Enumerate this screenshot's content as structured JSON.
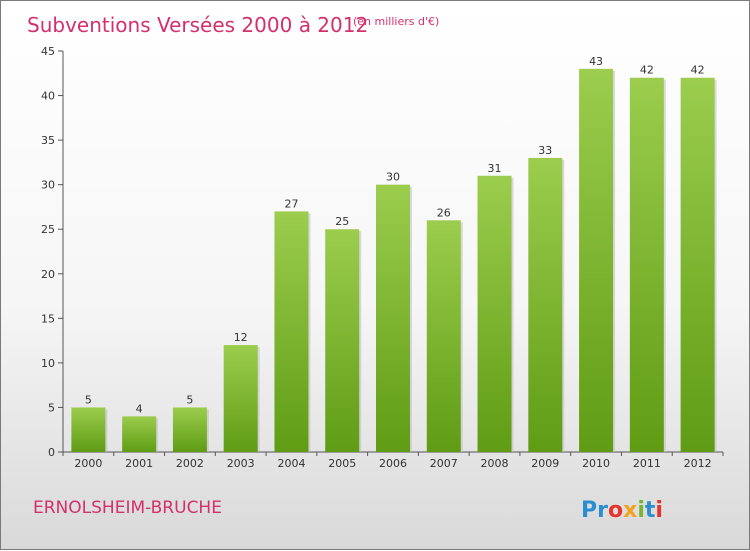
{
  "chart_data": {
    "type": "bar",
    "title": "Subventions Versées 2000 à 2012",
    "subtitle": "(en milliers d'€)",
    "categories": [
      "2000",
      "2001",
      "2002",
      "2003",
      "2004",
      "2005",
      "2006",
      "2007",
      "2008",
      "2009",
      "2010",
      "2011",
      "2012"
    ],
    "values": [
      5,
      4,
      5,
      12,
      27,
      25,
      30,
      26,
      31,
      33,
      43,
      42,
      42
    ],
    "ylim": [
      0,
      45
    ],
    "yticks": [
      0,
      5,
      10,
      15,
      20,
      25,
      30,
      35,
      40,
      45
    ],
    "grid": false,
    "legend": "none",
    "bar_color_top": "#9ccd4e",
    "bar_color_bottom": "#5f9c14"
  },
  "footer": {
    "place_name": "ERNOLSHEIM-BRUCHE",
    "logo_letters": [
      "P",
      "r",
      "o",
      "x",
      "i",
      "t",
      "i"
    ],
    "logo_colors": [
      "#2b8ed0",
      "#2b8ed0",
      "#e8332a",
      "#f3a21f",
      "#7ab531",
      "#2b8ed0",
      "#e8332a"
    ],
    "accent_color": "#d4306b"
  }
}
